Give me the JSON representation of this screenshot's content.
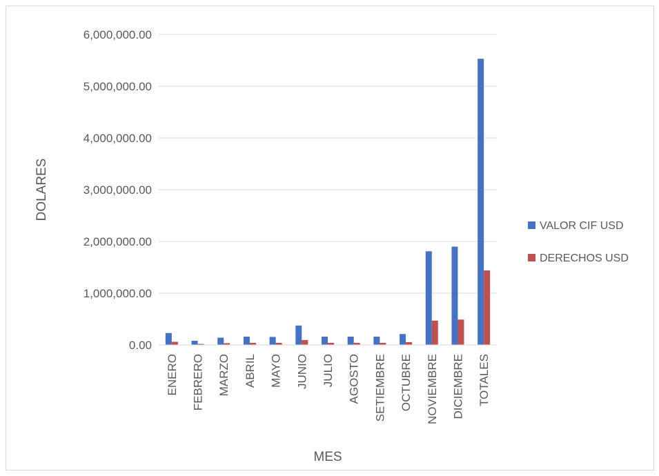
{
  "chart_data": {
    "type": "bar",
    "xlabel": "MES",
    "ylabel": "DOLARES",
    "categories": [
      "ENERO",
      "FEBRERO",
      "MARZO",
      "ABRIL",
      "MAYO",
      "JUNIO",
      "JULIO",
      "AGOSTO",
      "SETIEMBRE",
      "OCTUBRE",
      "NOVIEMBRE",
      "DICIEMBRE",
      "TOTALES"
    ],
    "series": [
      {
        "name": "VALOR CIF USD",
        "color": "#4472c4",
        "values": [
          230000,
          80000,
          140000,
          160000,
          155000,
          375000,
          160000,
          160000,
          160000,
          210000,
          1810000,
          1900000,
          5530000
        ]
      },
      {
        "name": "DERECHOS USD",
        "color": "#c0504d",
        "values": [
          60000,
          20000,
          35000,
          40000,
          40000,
          95000,
          40000,
          40000,
          40000,
          55000,
          470000,
          490000,
          1440000
        ]
      }
    ],
    "ylim": [
      0,
      6000000
    ],
    "yticks": [
      0,
      1000000,
      2000000,
      3000000,
      4000000,
      5000000,
      6000000
    ],
    "ytick_labels": [
      "0.00",
      "1,000,000.00",
      "2,000,000.00",
      "3,000,000.00",
      "4,000,000.00",
      "5,000,000.00",
      "6,000,000.00"
    ],
    "grid": true,
    "legend_position": "right"
  }
}
